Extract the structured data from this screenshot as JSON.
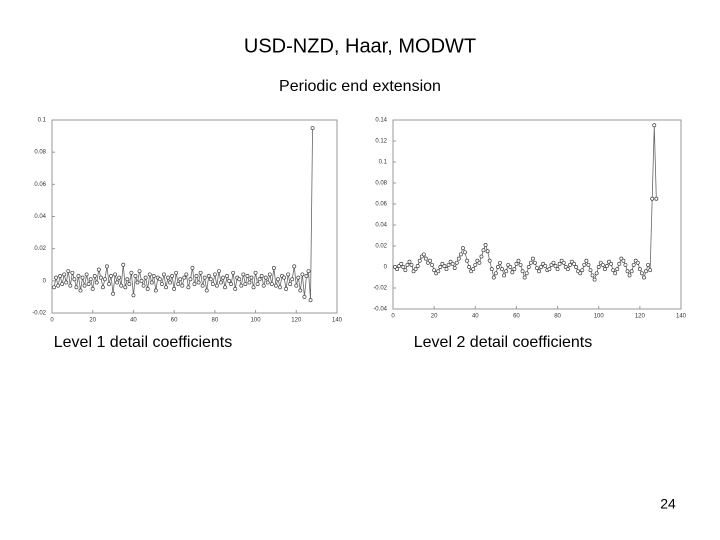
{
  "slide": {
    "title": "USD-NZD, Haar, MODWT",
    "subtitle": "Periodic end extension",
    "page_number": "24"
  },
  "chart_data": [
    {
      "type": "line",
      "caption": "Level 1 detail coefficients",
      "color": "#666666",
      "x": [
        1,
        2,
        3,
        4,
        5,
        6,
        7,
        8,
        9,
        10,
        11,
        12,
        13,
        14,
        15,
        16,
        17,
        18,
        19,
        20,
        21,
        22,
        23,
        24,
        25,
        26,
        27,
        28,
        29,
        30,
        31,
        32,
        33,
        34,
        35,
        36,
        37,
        38,
        39,
        40,
        41,
        42,
        43,
        44,
        45,
        46,
        47,
        48,
        49,
        50,
        51,
        52,
        53,
        54,
        55,
        56,
        57,
        58,
        59,
        60,
        61,
        62,
        63,
        64,
        65,
        66,
        67,
        68,
        69,
        70,
        71,
        72,
        73,
        74,
        75,
        76,
        77,
        78,
        79,
        80,
        81,
        82,
        83,
        84,
        85,
        86,
        87,
        88,
        89,
        90,
        91,
        92,
        93,
        94,
        95,
        96,
        97,
        98,
        99,
        100,
        101,
        102,
        103,
        104,
        105,
        106,
        107,
        108,
        109,
        110,
        111,
        112,
        113,
        114,
        115,
        116,
        117,
        118,
        119,
        120,
        121,
        122,
        123,
        124,
        125,
        126,
        127,
        128
      ],
      "values": [
        -0.004,
        0.002,
        -0.003,
        0.003,
        -0.002,
        0.004,
        -0.001,
        0.006,
        -0.003,
        0.005,
        0.001,
        -0.004,
        0.003,
        -0.006,
        0.002,
        -0.003,
        0.004,
        -0.002,
        0.001,
        -0.005,
        0.003,
        -0.001,
        0.007,
        0.002,
        -0.004,
        0.001,
        0.009,
        -0.002,
        0.003,
        -0.008,
        0.004,
        -0.001,
        0.002,
        -0.003,
        0.01,
        -0.004,
        0.001,
        -0.002,
        0.005,
        -0.009,
        0.003,
        -0.001,
        0.006,
        0.0,
        -0.003,
        0.002,
        -0.005,
        0.004,
        -0.001,
        0.003,
        -0.006,
        0.002,
        0.001,
        -0.002,
        0.004,
        -0.004,
        0.002,
        -0.001,
        0.003,
        -0.005,
        0.005,
        -0.002,
        0.001,
        -0.003,
        0.002,
        0.004,
        -0.004,
        0.001,
        0.008,
        -0.002,
        0.003,
        -0.001,
        0.005,
        -0.003,
        0.002,
        -0.006,
        0.003,
        0.001,
        -0.002,
        0.004,
        -0.003,
        0.006,
        -0.001,
        0.002,
        -0.004,
        0.003,
        0.0,
        -0.002,
        0.005,
        -0.005,
        0.002,
        0.001,
        -0.003,
        0.004,
        -0.002,
        0.003,
        -0.001,
        0.002,
        -0.004,
        0.005,
        -0.002,
        0.001,
        0.003,
        -0.003,
        0.002,
        -0.001,
        0.004,
        -0.002,
        0.008,
        -0.003,
        0.001,
        -0.004,
        0.003,
        0.002,
        -0.005,
        0.004,
        -0.002,
        0.001,
        0.009,
        -0.003,
        0.002,
        -0.006,
        0.004,
        -0.01,
        0.003,
        0.006,
        -0.012,
        0.095
      ],
      "xlim": [
        0,
        140
      ],
      "xticks": [
        0,
        20,
        40,
        60,
        80,
        100,
        120,
        140
      ],
      "ylim": [
        -0.02,
        0.1
      ],
      "yticks": [
        -0.02,
        0,
        0.02,
        0.04,
        0.06,
        0.08,
        0.1
      ]
    },
    {
      "type": "line",
      "caption": "Level 2 detail coefficients",
      "color": "#666666",
      "x": [
        1,
        2,
        3,
        4,
        5,
        6,
        7,
        8,
        9,
        10,
        11,
        12,
        13,
        14,
        15,
        16,
        17,
        18,
        19,
        20,
        21,
        22,
        23,
        24,
        25,
        26,
        27,
        28,
        29,
        30,
        31,
        32,
        33,
        34,
        35,
        36,
        37,
        38,
        39,
        40,
        41,
        42,
        43,
        44,
        45,
        46,
        47,
        48,
        49,
        50,
        51,
        52,
        53,
        54,
        55,
        56,
        57,
        58,
        59,
        60,
        61,
        62,
        63,
        64,
        65,
        66,
        67,
        68,
        69,
        70,
        71,
        72,
        73,
        74,
        75,
        76,
        77,
        78,
        79,
        80,
        81,
        82,
        83,
        84,
        85,
        86,
        87,
        88,
        89,
        90,
        91,
        92,
        93,
        94,
        95,
        96,
        97,
        98,
        99,
        100,
        101,
        102,
        103,
        104,
        105,
        106,
        107,
        108,
        109,
        110,
        111,
        112,
        113,
        114,
        115,
        116,
        117,
        118,
        119,
        120,
        121,
        122,
        123,
        124,
        125,
        126,
        127,
        128
      ],
      "values": [
        0.0,
        -0.002,
        0.001,
        0.003,
        0.0,
        -0.003,
        0.002,
        0.005,
        0.002,
        -0.004,
        -0.002,
        0.001,
        0.006,
        0.01,
        0.012,
        0.008,
        0.004,
        0.006,
        0.002,
        -0.003,
        -0.006,
        -0.004,
        0.0,
        0.003,
        0.001,
        -0.002,
        0.002,
        0.005,
        0.003,
        -0.001,
        0.004,
        0.008,
        0.012,
        0.018,
        0.014,
        0.006,
        0.0,
        -0.004,
        -0.002,
        0.002,
        0.006,
        0.004,
        0.01,
        0.016,
        0.021,
        0.015,
        0.006,
        -0.002,
        -0.01,
        -0.006,
        0.0,
        0.004,
        -0.002,
        -0.008,
        -0.004,
        0.002,
        0.0,
        -0.005,
        -0.002,
        0.003,
        0.006,
        0.002,
        -0.004,
        -0.01,
        -0.006,
        0.0,
        0.004,
        0.008,
        0.004,
        -0.001,
        -0.004,
        0.0,
        0.003,
        0.001,
        -0.003,
        -0.002,
        0.002,
        0.004,
        0.001,
        -0.002,
        0.003,
        0.006,
        0.004,
        0.0,
        -0.002,
        0.002,
        0.005,
        0.003,
        0.0,
        -0.004,
        -0.006,
        -0.003,
        0.002,
        0.006,
        0.002,
        -0.003,
        -0.008,
        -0.012,
        -0.006,
        0.0,
        0.004,
        0.002,
        -0.002,
        0.001,
        0.005,
        0.003,
        -0.003,
        -0.006,
        -0.002,
        0.003,
        0.008,
        0.006,
        0.002,
        -0.004,
        -0.008,
        -0.004,
        0.002,
        0.006,
        0.004,
        -0.002,
        -0.006,
        -0.01,
        -0.004,
        0.002,
        -0.003,
        0.065,
        0.135,
        0.065
      ],
      "xlim": [
        0,
        140
      ],
      "xticks": [
        0,
        20,
        40,
        60,
        80,
        100,
        120,
        140
      ],
      "ylim": [
        -0.04,
        0.14
      ],
      "yticks": [
        -0.04,
        -0.02,
        0,
        0.02,
        0.04,
        0.06,
        0.08,
        0.1,
        0.12,
        0.14
      ]
    }
  ]
}
